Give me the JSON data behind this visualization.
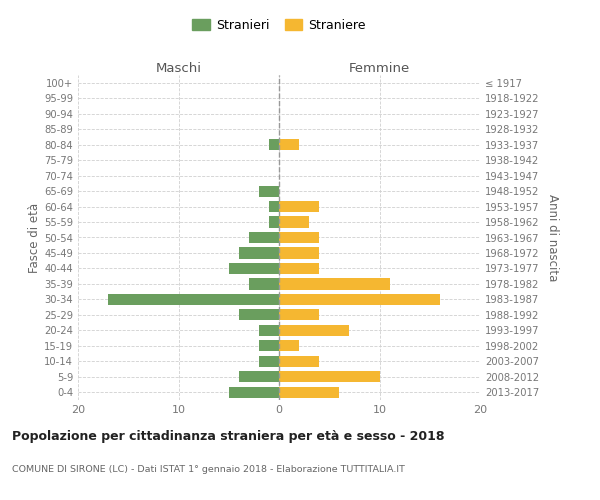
{
  "age_groups": [
    "100+",
    "95-99",
    "90-94",
    "85-89",
    "80-84",
    "75-79",
    "70-74",
    "65-69",
    "60-64",
    "55-59",
    "50-54",
    "45-49",
    "40-44",
    "35-39",
    "30-34",
    "25-29",
    "20-24",
    "15-19",
    "10-14",
    "5-9",
    "0-4"
  ],
  "birth_years": [
    "≤ 1917",
    "1918-1922",
    "1923-1927",
    "1928-1932",
    "1933-1937",
    "1938-1942",
    "1943-1947",
    "1948-1952",
    "1953-1957",
    "1958-1962",
    "1963-1967",
    "1968-1972",
    "1973-1977",
    "1978-1982",
    "1983-1987",
    "1988-1992",
    "1993-1997",
    "1998-2002",
    "2003-2007",
    "2008-2012",
    "2013-2017"
  ],
  "maschi": [
    0,
    0,
    0,
    0,
    1,
    0,
    0,
    2,
    1,
    1,
    3,
    4,
    5,
    3,
    17,
    4,
    2,
    2,
    2,
    4,
    5
  ],
  "femmine": [
    0,
    0,
    0,
    0,
    2,
    0,
    0,
    0,
    4,
    3,
    4,
    4,
    4,
    11,
    16,
    4,
    7,
    2,
    4,
    10,
    6
  ],
  "color_maschi": "#6a9e5e",
  "color_femmine": "#f5b731",
  "title": "Popolazione per cittadinanza straniera per età e sesso - 2018",
  "subtitle": "COMUNE DI SIRONE (LC) - Dati ISTAT 1° gennaio 2018 - Elaborazione TUTTITALIA.IT",
  "label_maschi_top": "Maschi",
  "label_femmine_top": "Femmine",
  "ylabel_left": "Fasce di età",
  "ylabel_right": "Anni di nascita",
  "legend_maschi": "Stranieri",
  "legend_femmine": "Straniere",
  "xlim": 20,
  "background_color": "#ffffff",
  "grid_color": "#d0d0d0"
}
